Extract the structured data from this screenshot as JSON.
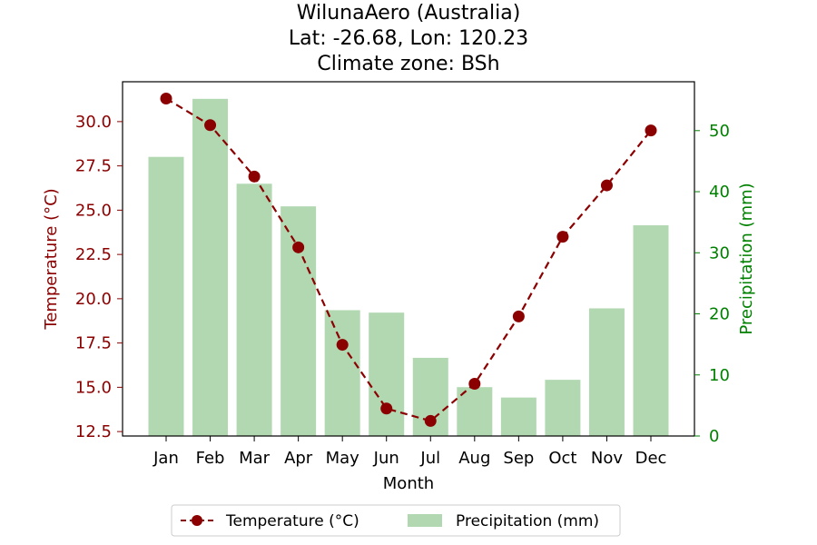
{
  "chart_data": {
    "type": "bar",
    "title": [
      "WilunaAero (Australia)",
      "Lat: -26.68, Lon: 120.23",
      "Climate zone: BSh"
    ],
    "xlabel": "Month",
    "categories": [
      "Jan",
      "Feb",
      "Mar",
      "Apr",
      "May",
      "Jun",
      "Jul",
      "Aug",
      "Sep",
      "Oct",
      "Nov",
      "Dec"
    ],
    "series": [
      {
        "name": "Temperature (°C)",
        "type": "line",
        "axis": "left",
        "color": "#8b0000",
        "line_style": "dashed",
        "marker": "circle",
        "values": [
          31.3,
          29.8,
          26.9,
          22.9,
          17.4,
          13.8,
          13.1,
          15.2,
          19.0,
          23.5,
          26.4,
          29.5
        ]
      },
      {
        "name": "Precipitation (mm)",
        "type": "bar",
        "axis": "right",
        "color": "#b2d8b2",
        "values": [
          45.7,
          55.2,
          41.3,
          37.6,
          20.6,
          20.2,
          12.8,
          8.0,
          6.3,
          9.2,
          20.9,
          34.5
        ]
      }
    ],
    "y_left": {
      "label": "Temperature (°C)",
      "color": "#8b0000",
      "range": [
        12.25,
        32.25
      ],
      "ticks": [
        "12.5",
        "15.0",
        "17.5",
        "20.0",
        "22.5",
        "25.0",
        "27.5",
        "30.0"
      ]
    },
    "y_right": {
      "label": "Precipitation (mm)",
      "color": "#008000",
      "range": [
        0,
        58
      ],
      "ticks": [
        "0",
        "10",
        "20",
        "30",
        "40",
        "50"
      ]
    },
    "legend": {
      "placement": "bottom-center",
      "items": [
        "Temperature (°C)",
        "Precipitation (mm)"
      ]
    },
    "grid": false
  }
}
